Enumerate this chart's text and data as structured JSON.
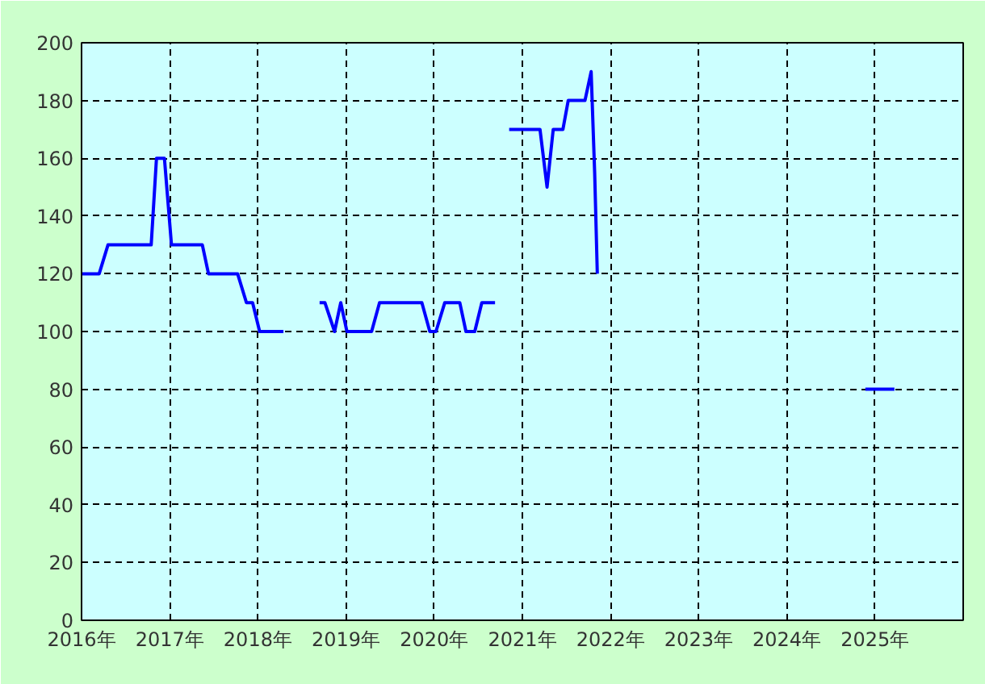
{
  "chart_data": {
    "type": "line",
    "xlim": [
      2016,
      2026
    ],
    "ylim": [
      0,
      200
    ],
    "xticks": [
      {
        "value": 2016,
        "label": "2016年"
      },
      {
        "value": 2017,
        "label": "2017年"
      },
      {
        "value": 2018,
        "label": "2018年"
      },
      {
        "value": 2019,
        "label": "2019年"
      },
      {
        "value": 2020,
        "label": "2020年"
      },
      {
        "value": 2021,
        "label": "2021年"
      },
      {
        "value": 2022,
        "label": "2022年"
      },
      {
        "value": 2023,
        "label": "2023年"
      },
      {
        "value": 2024,
        "label": "2024年"
      },
      {
        "value": 2025,
        "label": "2025年"
      }
    ],
    "yticks": [
      0,
      20,
      40,
      60,
      80,
      100,
      120,
      140,
      160,
      180,
      200
    ],
    "grid": true,
    "marker": "none",
    "line_style": "solid",
    "x": [
      2016.0,
      2016.2,
      2016.3,
      2016.79,
      2016.85,
      2016.94,
      2017.02,
      2017.37,
      2017.44,
      2017.77,
      2017.87,
      2017.94,
      2018.02,
      2018.29,
      2018.5,
      2018.7,
      2018.76,
      2018.87,
      2018.94,
      2019.01,
      2019.29,
      2019.38,
      2019.86,
      2019.95,
      2020.02,
      2020.12,
      2020.29,
      2020.36,
      2020.46,
      2020.54,
      2020.69,
      2020.77,
      2020.85,
      2021.2,
      2021.28,
      2021.35,
      2021.46,
      2021.52,
      2021.71,
      2021.78,
      2021.82,
      2021.85,
      2023.0,
      2024.89,
      2025.22
    ],
    "series": [
      {
        "color": "#0000ff",
        "values": [
          120,
          120,
          130,
          130,
          160,
          160,
          130,
          130,
          120,
          120,
          110,
          110,
          100,
          100,
          null,
          110,
          110,
          100,
          110,
          100,
          100,
          110,
          110,
          100,
          100,
          110,
          110,
          100,
          100,
          110,
          110,
          null,
          170,
          170,
          150,
          170,
          170,
          180,
          180,
          190,
          155,
          120,
          null,
          80,
          80
        ]
      }
    ]
  }
}
